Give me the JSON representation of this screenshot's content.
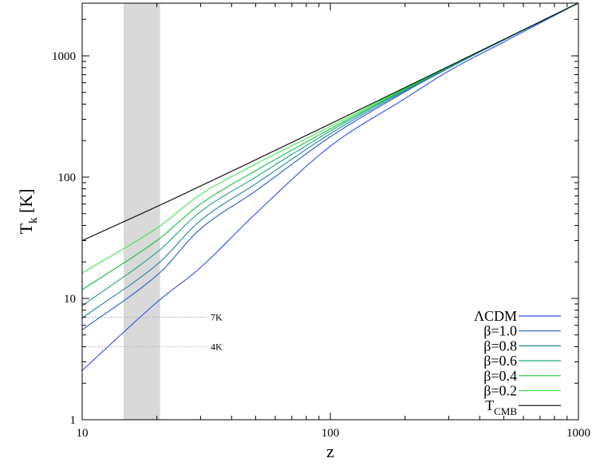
{
  "chart_data": {
    "type": "line",
    "xlabel": "z",
    "ylabel": {
      "main": "T",
      "sub": "k",
      "unit": " [K]"
    },
    "xscale": "log",
    "yscale": "log",
    "xlim": [
      10,
      1000
    ],
    "ylim": [
      1,
      2730
    ],
    "x_ticks": [
      {
        "value": 10,
        "label": "10"
      },
      {
        "value": 100,
        "label": "100"
      },
      {
        "value": 1000,
        "label": "1000"
      }
    ],
    "y_ticks": [
      {
        "value": 1,
        "label": "1"
      },
      {
        "value": 10,
        "label": "10"
      },
      {
        "value": 100,
        "label": "100"
      },
      {
        "value": 1000,
        "label": "1000"
      }
    ],
    "grid": false,
    "legend_position": "bottom-right",
    "shaded_band": {
      "x_range": [
        14.7,
        20.6
      ],
      "color": "#d9d9d9"
    },
    "reference_lines": [
      {
        "y": 7,
        "label": "7K"
      },
      {
        "y": 4,
        "label": "4K"
      }
    ],
    "x": [
      10,
      20,
      30,
      50,
      100,
      200,
      300,
      500,
      1000
    ],
    "series": [
      {
        "name": "ΛCDM",
        "color": "#2a4ff0",
        "values": [
          2.55,
          9.3,
          18,
          50,
          180,
          445,
          750,
          1300,
          2728
        ]
      },
      {
        "name": "β=1.0",
        "color": "#1f5fc8",
        "values": [
          5.5,
          15.5,
          37.5,
          77,
          215,
          505,
          792,
          1350,
          2728
        ]
      },
      {
        "name": "β=0.8",
        "color": "#1f82a8",
        "values": [
          6.9,
          19,
          44,
          88,
          228,
          515,
          800,
          1355,
          2728
        ]
      },
      {
        "name": "β=0.6",
        "color": "#1aa482",
        "values": [
          8.7,
          24,
          52,
          100,
          240,
          525,
          805,
          1358,
          2728
        ]
      },
      {
        "name": "β=0.4",
        "color": "#12c23a",
        "values": [
          11.8,
          30,
          60,
          113,
          250,
          532,
          810,
          1360,
          2728
        ]
      },
      {
        "name": "β=0.2",
        "color": "#3fe84a",
        "values": [
          16.2,
          38,
          72,
          128,
          262,
          540,
          815,
          1362,
          2728
        ]
      },
      {
        "name": "T",
        "name_sub": "CMB",
        "color": "#000000",
        "values": [
          29.98,
          57.2,
          84.5,
          139,
          275,
          548,
          820,
          1365,
          2728
        ]
      }
    ]
  }
}
